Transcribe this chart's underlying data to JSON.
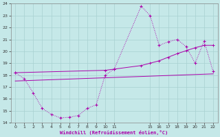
{
  "xlabel": "Windchill (Refroidissement éolien,°C)",
  "bg_color": "#c5e8e8",
  "grid_color": "#a8d0d0",
  "line_color": "#aa00aa",
  "xlim": [
    -0.5,
    22.5
  ],
  "ylim": [
    14,
    24
  ],
  "xtick_vals": [
    0,
    1,
    2,
    3,
    4,
    5,
    6,
    7,
    8,
    9,
    10,
    11,
    15,
    16,
    17,
    18,
    19,
    20,
    21,
    22
  ],
  "ytick_vals": [
    14,
    15,
    16,
    17,
    18,
    19,
    20,
    21,
    22,
    23,
    24
  ],
  "line1_x": [
    0,
    1,
    2,
    3,
    4,
    5,
    6,
    7,
    8,
    9,
    10,
    11,
    14,
    15,
    16,
    17,
    18,
    19,
    20,
    21,
    22
  ],
  "line1_y": [
    18.2,
    17.7,
    16.5,
    15.2,
    14.7,
    14.4,
    14.45,
    14.6,
    15.2,
    15.5,
    18.0,
    18.5,
    23.8,
    23.0,
    20.5,
    20.8,
    21.0,
    20.4,
    19.0,
    20.85,
    18.3
  ],
  "line2_x": [
    0,
    10,
    11,
    14,
    15,
    16,
    17,
    18,
    19,
    20,
    21,
    22
  ],
  "line2_y": [
    18.2,
    18.4,
    18.5,
    18.8,
    19.0,
    19.2,
    19.5,
    19.8,
    20.05,
    20.3,
    20.5,
    20.5
  ],
  "line3_x": [
    0,
    22
  ],
  "line3_y": [
    17.5,
    18.1
  ]
}
